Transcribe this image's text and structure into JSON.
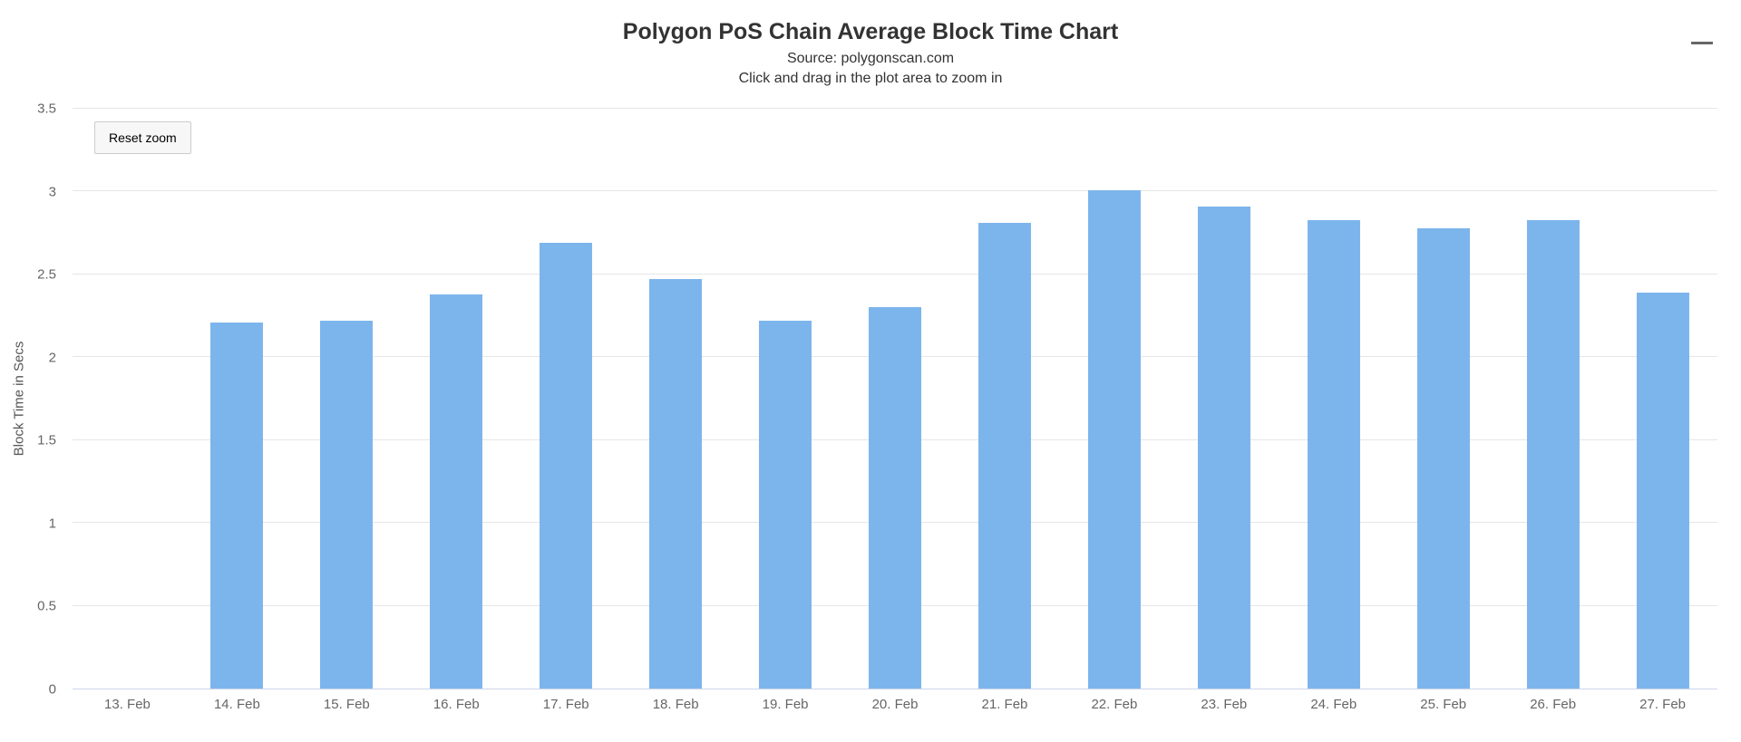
{
  "chart_data": {
    "type": "bar",
    "title": "Polygon PoS Chain Average Block Time Chart",
    "subtitle_lines": [
      "Source: polygonscan.com",
      "Click and drag in the plot area to zoom in"
    ],
    "categories": [
      "13. Feb",
      "14. Feb",
      "15. Feb",
      "16. Feb",
      "17. Feb",
      "18. Feb",
      "19. Feb",
      "20. Feb",
      "21. Feb",
      "22. Feb",
      "23. Feb",
      "24. Feb",
      "25. Feb",
      "26. Feb",
      "27. Feb"
    ],
    "values": [
      null,
      2.21,
      2.22,
      2.38,
      2.69,
      2.47,
      2.22,
      2.3,
      2.81,
      3.01,
      2.91,
      2.83,
      2.78,
      2.83,
      2.39
    ],
    "xlabel": "",
    "ylabel": "Block Time in Secs",
    "ylim": [
      0,
      3.5
    ],
    "yticks": [
      0,
      0.5,
      1,
      1.5,
      2,
      2.5,
      3,
      3.5
    ],
    "grid": true,
    "legend": "none",
    "bar_color": "#7cb5ec",
    "grid_color": "#e6e6e6",
    "axis_line_color": "#ccd6eb"
  },
  "controls": {
    "reset_zoom_label": "Reset zoom",
    "menu_icon": "hamburger-menu-icon"
  }
}
